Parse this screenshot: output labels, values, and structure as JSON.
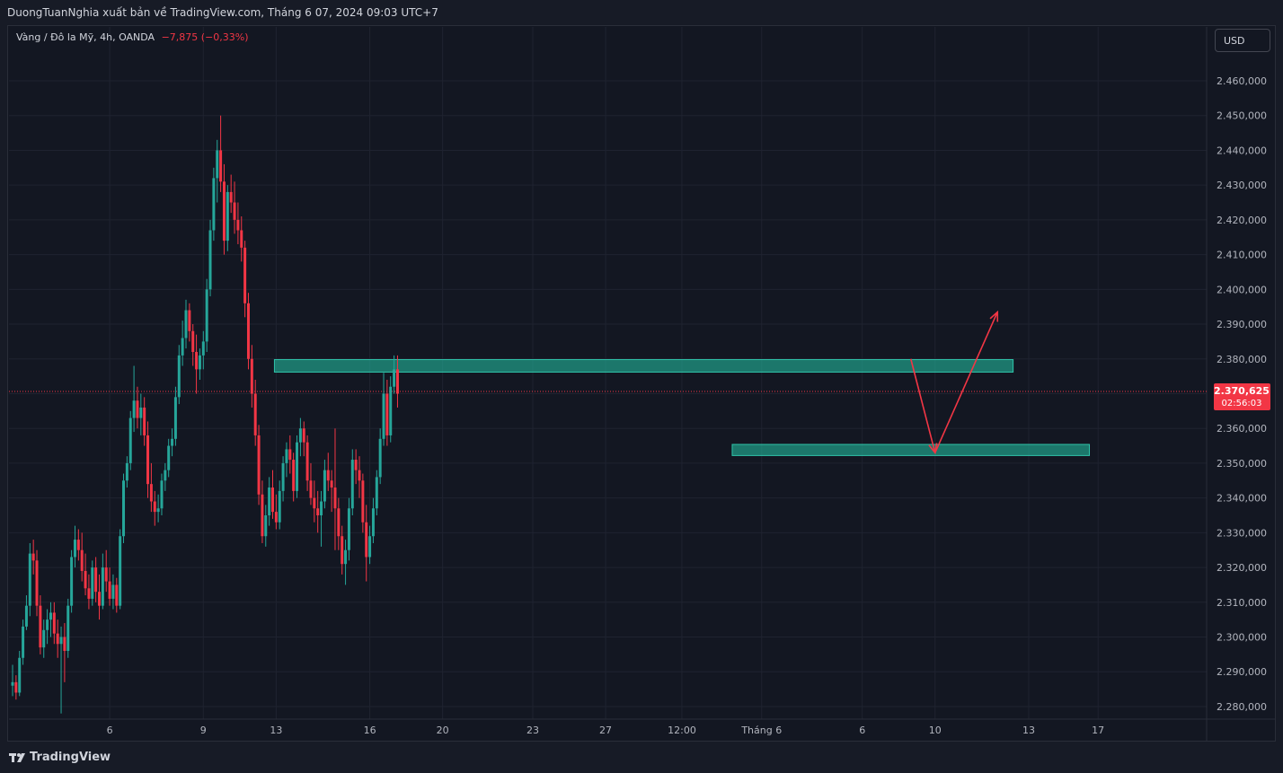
{
  "header": {
    "title": "DuongTuanNghia xuất bản về TradingView.com, Tháng 6 07, 2024 09:03 UTC+7"
  },
  "legend": {
    "symbol": "Vàng / Đô la Mỹ, 4h, OANDA",
    "change": "−7,875 (−0,33%)"
  },
  "currency_button": "USD",
  "price_label": {
    "price": "2.370,625",
    "countdown": "02:56:03"
  },
  "footer": {
    "brand": "TradingView"
  },
  "colors": {
    "up": "#26a69a",
    "down": "#f23645",
    "zone": "#22ab94",
    "arrow": "#f23645",
    "background": "#131722"
  },
  "chart_data": {
    "type": "candlestick",
    "title": "",
    "ylim": [
      2275,
      2467
    ],
    "y_ticks": [
      2280,
      2290,
      2300,
      2310,
      2320,
      2330,
      2340,
      2350,
      2360,
      2370,
      2380,
      2390,
      2400,
      2410,
      2420,
      2430,
      2440,
      2450,
      2460
    ],
    "y_tick_labels": [
      "2.280,000",
      "2.290,000",
      "2.300,000",
      "2.310,000",
      "2.320,000",
      "2.330,000",
      "2.340,000",
      "2.350,000",
      "2.360,000",
      "2.370,000",
      "2.380,000",
      "2.390,000",
      "2.400,000",
      "2.410,000",
      "2.420,000",
      "2.430,000",
      "2.440,000",
      "2.450,000",
      "2.460,000"
    ],
    "x_labels": [
      {
        "label": "6",
        "bar": 28
      },
      {
        "label": "9",
        "bar": 55
      },
      {
        "label": "13",
        "bar": 76
      },
      {
        "label": "16",
        "bar": 103
      },
      {
        "label": "20",
        "bar": 124
      },
      {
        "label": "23",
        "bar": 150
      },
      {
        "label": "27",
        "bar": 171
      },
      {
        "label": "12:00",
        "bar": 193
      },
      {
        "label": "Tháng 6",
        "bar": 216
      },
      {
        "label": "6",
        "bar": 245
      },
      {
        "label": "10",
        "bar": 266
      },
      {
        "label": "13",
        "bar": 293
      },
      {
        "label": "17",
        "bar": 313
      }
    ],
    "last_price": 2370.625,
    "candles": [
      [
        2286,
        2292,
        2283,
        2287
      ],
      [
        2287,
        2289,
        2282,
        2284
      ],
      [
        2284,
        2296,
        2283,
        2294
      ],
      [
        2294,
        2305,
        2292,
        2303
      ],
      [
        2303,
        2312,
        2302,
        2309
      ],
      [
        2309,
        2327,
        2306,
        2324
      ],
      [
        2324,
        2328,
        2318,
        2322
      ],
      [
        2322,
        2325,
        2306,
        2309
      ],
      [
        2309,
        2312,
        2295,
        2297
      ],
      [
        2297,
        2305,
        2294,
        2302
      ],
      [
        2302,
        2308,
        2298,
        2305
      ],
      [
        2305,
        2310,
        2300,
        2307
      ],
      [
        2307,
        2310,
        2298,
        2301
      ],
      [
        2301,
        2305,
        2294,
        2298
      ],
      [
        2298,
        2303,
        2278,
        2300
      ],
      [
        2300,
        2304,
        2287,
        2296
      ],
      [
        2296,
        2311,
        2294,
        2309
      ],
      [
        2309,
        2325,
        2307,
        2323
      ],
      [
        2323,
        2332,
        2320,
        2328
      ],
      [
        2328,
        2331,
        2322,
        2325
      ],
      [
        2325,
        2330,
        2316,
        2319
      ],
      [
        2319,
        2324,
        2312,
        2314
      ],
      [
        2314,
        2318,
        2308,
        2311
      ],
      [
        2311,
        2322,
        2309,
        2320
      ],
      [
        2320,
        2323,
        2310,
        2313
      ],
      [
        2313,
        2318,
        2305,
        2309
      ],
      [
        2309,
        2324,
        2308,
        2320
      ],
      [
        2320,
        2325,
        2313,
        2316
      ],
      [
        2316,
        2320,
        2309,
        2311
      ],
      [
        2311,
        2318,
        2308,
        2315
      ],
      [
        2315,
        2317,
        2307,
        2309
      ],
      [
        2309,
        2331,
        2308,
        2329
      ],
      [
        2329,
        2347,
        2327,
        2345
      ],
      [
        2345,
        2352,
        2343,
        2350
      ],
      [
        2350,
        2365,
        2348,
        2363
      ],
      [
        2363,
        2378,
        2359,
        2368
      ],
      [
        2368,
        2372,
        2360,
        2363
      ],
      [
        2363,
        2370,
        2358,
        2366
      ],
      [
        2366,
        2369,
        2355,
        2358
      ],
      [
        2358,
        2362,
        2340,
        2344
      ],
      [
        2344,
        2350,
        2336,
        2339
      ],
      [
        2339,
        2342,
        2332,
        2336
      ],
      [
        2336,
        2341,
        2333,
        2337
      ],
      [
        2337,
        2347,
        2335,
        2345
      ],
      [
        2345,
        2350,
        2342,
        2348
      ],
      [
        2348,
        2357,
        2346,
        2355
      ],
      [
        2355,
        2360,
        2352,
        2357
      ],
      [
        2357,
        2372,
        2355,
        2369
      ],
      [
        2369,
        2384,
        2367,
        2381
      ],
      [
        2381,
        2391,
        2378,
        2386
      ],
      [
        2386,
        2397,
        2383,
        2394
      ],
      [
        2394,
        2396,
        2385,
        2388
      ],
      [
        2388,
        2390,
        2378,
        2382
      ],
      [
        2382,
        2387,
        2370,
        2377
      ],
      [
        2377,
        2383,
        2374,
        2381
      ],
      [
        2381,
        2388,
        2377,
        2385
      ],
      [
        2385,
        2403,
        2382,
        2400
      ],
      [
        2400,
        2420,
        2398,
        2417
      ],
      [
        2417,
        2435,
        2414,
        2432
      ],
      [
        2432,
        2443,
        2425,
        2440
      ],
      [
        2440,
        2450,
        2428,
        2431
      ],
      [
        2431,
        2436,
        2410,
        2414
      ],
      [
        2414,
        2430,
        2411,
        2428
      ],
      [
        2428,
        2433,
        2422,
        2425
      ],
      [
        2425,
        2431,
        2416,
        2420
      ],
      [
        2420,
        2425,
        2413,
        2417
      ],
      [
        2417,
        2421,
        2408,
        2412
      ],
      [
        2412,
        2414,
        2392,
        2396
      ],
      [
        2396,
        2399,
        2377,
        2380
      ],
      [
        2380,
        2384,
        2366,
        2370
      ],
      [
        2370,
        2374,
        2355,
        2358
      ],
      [
        2358,
        2361,
        2338,
        2341
      ],
      [
        2341,
        2345,
        2327,
        2329
      ],
      [
        2329,
        2338,
        2326,
        2335
      ],
      [
        2335,
        2346,
        2332,
        2343
      ],
      [
        2343,
        2348,
        2334,
        2336
      ],
      [
        2336,
        2341,
        2331,
        2333
      ],
      [
        2333,
        2345,
        2331,
        2342
      ],
      [
        2342,
        2352,
        2339,
        2350
      ],
      [
        2350,
        2356,
        2346,
        2354
      ],
      [
        2354,
        2358,
        2347,
        2351
      ],
      [
        2351,
        2353,
        2339,
        2342
      ],
      [
        2342,
        2358,
        2340,
        2356
      ],
      [
        2356,
        2363,
        2352,
        2360
      ],
      [
        2360,
        2362,
        2352,
        2356
      ],
      [
        2356,
        2358,
        2342,
        2345
      ],
      [
        2345,
        2350,
        2338,
        2340
      ],
      [
        2340,
        2345,
        2333,
        2337
      ],
      [
        2337,
        2342,
        2330,
        2335
      ],
      [
        2335,
        2342,
        2326,
        2339
      ],
      [
        2339,
        2351,
        2337,
        2348
      ],
      [
        2348,
        2353,
        2342,
        2345
      ],
      [
        2345,
        2348,
        2336,
        2343
      ],
      [
        2343,
        2360,
        2325,
        2337
      ],
      [
        2337,
        2340,
        2325,
        2329
      ],
      [
        2329,
        2332,
        2318,
        2321
      ],
      [
        2321,
        2328,
        2315,
        2325
      ],
      [
        2325,
        2340,
        2322,
        2337
      ],
      [
        2337,
        2354,
        2335,
        2351
      ],
      [
        2351,
        2354,
        2344,
        2348
      ],
      [
        2348,
        2352,
        2340,
        2345
      ],
      [
        2345,
        2347,
        2330,
        2333
      ],
      [
        2333,
        2338,
        2316,
        2323
      ],
      [
        2323,
        2332,
        2321,
        2329
      ],
      [
        2329,
        2340,
        2327,
        2337
      ],
      [
        2337,
        2348,
        2335,
        2346
      ],
      [
        2346,
        2360,
        2344,
        2357
      ],
      [
        2357,
        2376,
        2355,
        2370
      ],
      [
        2370,
        2374,
        2355,
        2358
      ],
      [
        2358,
        2375,
        2356,
        2372
      ],
      [
        2372,
        2381,
        2370,
        2377
      ],
      [
        2377,
        2381,
        2366,
        2370
      ]
    ],
    "zones": [
      {
        "bar_start": 75.5,
        "bar_end": 288.5,
        "price_low": 2376.2,
        "price_high": 2379.8
      },
      {
        "bar_start": 207.5,
        "bar_end": 310.5,
        "price_low": 2352.2,
        "price_high": 2355.4
      }
    ],
    "arrows": [
      {
        "from": [
          259,
          2380
        ],
        "to": [
          266,
          2353
        ]
      },
      {
        "from": [
          266,
          2353
        ],
        "to": [
          284,
          2393.5
        ]
      }
    ]
  }
}
